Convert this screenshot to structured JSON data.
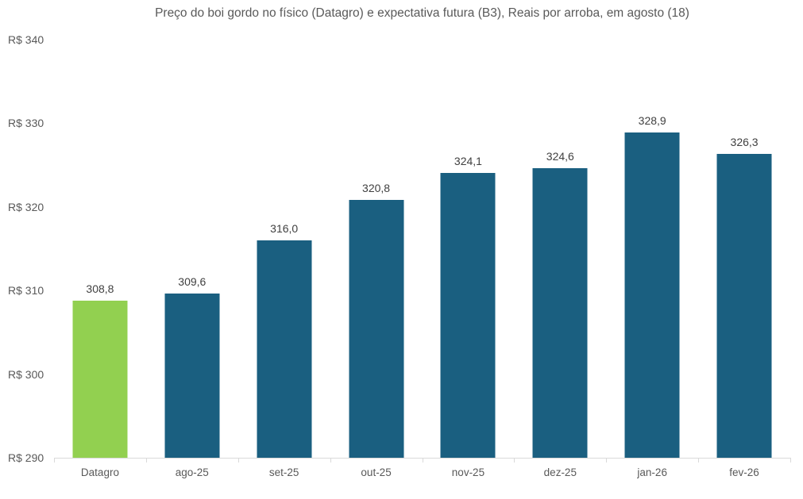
{
  "chart_data": {
    "type": "bar",
    "title": "Preço do boi gordo no físico (Datagro)  e expectativa futura (B3), Reais por arroba, em agosto (18)",
    "categories": [
      "Datagro",
      "ago-25",
      "set-25",
      "out-25",
      "nov-25",
      "dez-25",
      "jan-26",
      "fev-26"
    ],
    "values": [
      308.8,
      309.6,
      316.0,
      320.8,
      324.1,
      324.6,
      328.9,
      326.3
    ],
    "value_labels": [
      "308,8",
      "309,6",
      "316,0",
      "320,8",
      "324,1",
      "324,6",
      "328,9",
      "326,3"
    ],
    "bar_colors": [
      "#92D050",
      "#1A5F80",
      "#1A5F80",
      "#1A5F80",
      "#1A5F80",
      "#1A5F80",
      "#1A5F80",
      "#1A5F80"
    ],
    "xlabel": "",
    "ylabel": "",
    "ylim": [
      290,
      340
    ],
    "y_ticks": [
      {
        "value": 340,
        "label": "R$ 340"
      },
      {
        "value": 330,
        "label": "R$ 330"
      },
      {
        "value": 320,
        "label": "R$ 320"
      },
      {
        "value": 310,
        "label": "R$ 310"
      },
      {
        "value": 300,
        "label": "R$ 300"
      },
      {
        "value": 290,
        "label": "R$ 290"
      }
    ],
    "grid": "off",
    "legend": "none"
  },
  "colors": {
    "axis_line": "#d9d9d9",
    "title_text": "#595959",
    "axis_text": "#595959",
    "data_label_text": "#404040",
    "highlight_green": "#92D050",
    "series_teal": "#1A5F80",
    "background": "#ffffff"
  }
}
